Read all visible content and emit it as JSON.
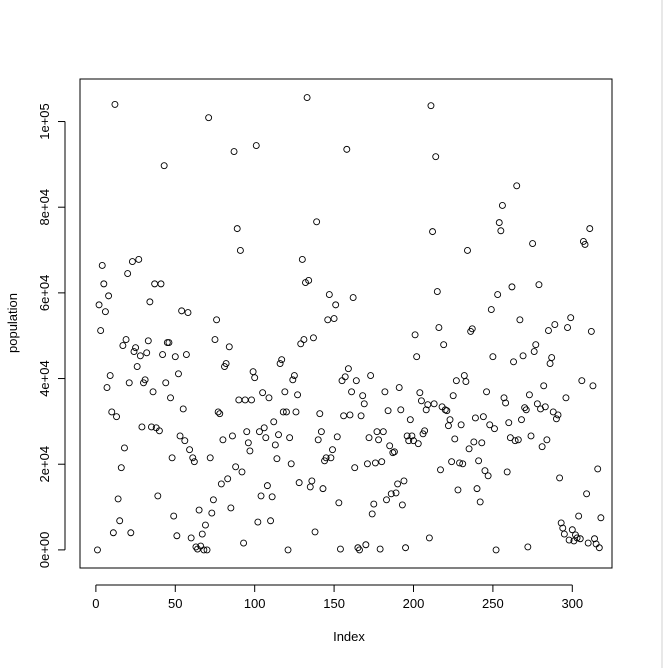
{
  "chart_data": {
    "type": "scatter",
    "x_label": "Index",
    "y_label": "population",
    "xlim": [
      -10,
      325
    ],
    "ylim": [
      -4228,
      109928
    ],
    "xticks": [
      0,
      50,
      100,
      150,
      200,
      250,
      300
    ],
    "yticks": [
      {
        "value": 0,
        "label": "0e+00"
      },
      {
        "value": 20000,
        "label": "2e+04"
      },
      {
        "value": 40000,
        "label": "4e+04"
      },
      {
        "value": 60000,
        "label": "6e+04"
      },
      {
        "value": 80000,
        "label": "8e+04"
      },
      {
        "value": 100000,
        "label": "1e+05"
      }
    ],
    "color": "#000000",
    "x": [
      1,
      2,
      3,
      4,
      5,
      6,
      7,
      8,
      9,
      10,
      11,
      12,
      13,
      14,
      15,
      16,
      17,
      18,
      19,
      20,
      21,
      22,
      23,
      24,
      25,
      26,
      27,
      28,
      29,
      30,
      31,
      32,
      33,
      34,
      35,
      36,
      37,
      38,
      39,
      40,
      41,
      42,
      43,
      44,
      45,
      46,
      47,
      48,
      49,
      50,
      51,
      52,
      53,
      54,
      55,
      56,
      57,
      58,
      59,
      60,
      61,
      62,
      63,
      64,
      65,
      66,
      67,
      68,
      69,
      70,
      71,
      72,
      73,
      74,
      75,
      76,
      77,
      78,
      79,
      80,
      81,
      82,
      83,
      84,
      85,
      86,
      87,
      88,
      89,
      90,
      91,
      92,
      93,
      94,
      95,
      96,
      97,
      98,
      99,
      100,
      101,
      102,
      103,
      104,
      105,
      106,
      107,
      108,
      109,
      110,
      111,
      112,
      113,
      114,
      115,
      116,
      117,
      118,
      119,
      120,
      121,
      122,
      123,
      124,
      125,
      126,
      127,
      128,
      129,
      130,
      131,
      132,
      133,
      134,
      135,
      136,
      137,
      138,
      139,
      140,
      141,
      142,
      143,
      144,
      145,
      146,
      147,
      148,
      149,
      150,
      151,
      152,
      153,
      154,
      155,
      156,
      157,
      158,
      159,
      160,
      161,
      162,
      163,
      164,
      165,
      166,
      167,
      168,
      169,
      170,
      171,
      172,
      173,
      174,
      175,
      176,
      177,
      178,
      179,
      180,
      181,
      182,
      183,
      184,
      185,
      186,
      187,
      188,
      189,
      190,
      191,
      192,
      193,
      194,
      195,
      196,
      197,
      198,
      199,
      200,
      201,
      202,
      203,
      204,
      205,
      206,
      207,
      208,
      209,
      210,
      211,
      212,
      213,
      214,
      215,
      216,
      217,
      218,
      219,
      220,
      221,
      222,
      223,
      224,
      225,
      226,
      227,
      228,
      229,
      230,
      231,
      232,
      233,
      234,
      235,
      236,
      237,
      238,
      239,
      240,
      241,
      242,
      243,
      244,
      245,
      246,
      247,
      248,
      249,
      250,
      251,
      252,
      253,
      254,
      255,
      256,
      257,
      258,
      259,
      260,
      261,
      262,
      263,
      264,
      265,
      266,
      267,
      268,
      269,
      270,
      271,
      272,
      273,
      274,
      275,
      276,
      277,
      278,
      279,
      280,
      281,
      282,
      283,
      284,
      285,
      286,
      287,
      288,
      289,
      290,
      291,
      292,
      293,
      294,
      295,
      296,
      297,
      298,
      299,
      300,
      301,
      302,
      303,
      304,
      305,
      306,
      307,
      308,
      309,
      310,
      311,
      312,
      313,
      314,
      315,
      316,
      317,
      318
    ],
    "values": [
      0,
      57200,
      51200,
      66400,
      62100,
      55600,
      37900,
      59300,
      40700,
      32200,
      4000,
      104000,
      31100,
      11900,
      6800,
      19200,
      47700,
      23800,
      49100,
      64500,
      39000,
      4000,
      67300,
      46300,
      47200,
      42800,
      67800,
      45300,
      28700,
      39000,
      39700,
      46000,
      48800,
      57900,
      28700,
      36900,
      62100,
      28500,
      12600,
      27800,
      62100,
      45600,
      89700,
      39000,
      48400,
      48400,
      35500,
      21500,
      7900,
      45100,
      3300,
      41100,
      26600,
      55800,
      32900,
      25500,
      45600,
      55400,
      23400,
      2800,
      21500,
      20600,
      700,
      200,
      9300,
      900,
      3700,
      0,
      5800,
      0,
      100900,
      21500,
      8600,
      11700,
      49100,
      53700,
      32200,
      31800,
      15400,
      25700,
      42800,
      43500,
      16600,
      47400,
      9800,
      26600,
      93000,
      19400,
      75000,
      35000,
      69900,
      18200,
      1600,
      35000,
      27600,
      25000,
      23100,
      35000,
      41600,
      40200,
      94400,
      6500,
      27600,
      12600,
      36700,
      28500,
      26200,
      15000,
      35500,
      6800,
      12400,
      29900,
      24500,
      21300,
      26900,
      43500,
      44400,
      32200,
      36900,
      32200,
      0,
      26200,
      20100,
      39700,
      40700,
      32200,
      36200,
      15700,
      48100,
      67800,
      49100,
      62400,
      105600,
      62900,
      14700,
      16100,
      49500,
      4200,
      76600,
      25700,
      31800,
      27600,
      14300,
      20800,
      21500,
      53700,
      59600,
      21500,
      23400,
      54000,
      57200,
      26400,
      11000,
      200,
      39500,
      31300,
      40400,
      93500,
      42300,
      31500,
      36900,
      58900,
      19200,
      39500,
      500,
      0,
      31300,
      36000,
      34100,
      1200,
      20100,
      26200,
      40700,
      8400,
      10700,
      20300,
      27600,
      25700,
      200,
      20600,
      27600,
      36900,
      11700,
      32500,
      24300,
      13100,
      22700,
      22900,
      13300,
      15400,
      37900,
      32700,
      10500,
      16100,
      500,
      26600,
      25500,
      30400,
      26600,
      25500,
      50200,
      45100,
      24800,
      36700,
      34800,
      27100,
      27800,
      32700,
      33900,
      2800,
      103700,
      74300,
      34100,
      91800,
      60300,
      51900,
      18700,
      33400,
      47900,
      32700,
      32500,
      29000,
      30400,
      20600,
      36000,
      25900,
      39500,
      14000,
      20300,
      29200,
      20100,
      40700,
      39300,
      69900,
      23600,
      51000,
      51600,
      25200,
      30800,
      14300,
      20800,
      11200,
      25000,
      31100,
      18500,
      36900,
      17300,
      29200,
      56100,
      45100,
      28300,
      0,
      59600,
      76400,
      74500,
      80400,
      35500,
      34300,
      18200,
      29700,
      26200,
      61400,
      43900,
      25500,
      85000,
      25700,
      53700,
      30400,
      45300,
      33200,
      32700,
      700,
      36200,
      26600,
      71500,
      46300,
      47900,
      34100,
      61900,
      32900,
      24100,
      38300,
      33400,
      25700,
      51200,
      43500,
      44900,
      32200,
      52600,
      30600,
      31500,
      16800,
      6300,
      5100,
      3700,
      35500,
      51900,
      2300,
      54200,
      4700,
      2100,
      3500,
      2800,
      7900,
      2600,
      39500,
      72000,
      71300,
      13100,
      1600,
      75000,
      51000,
      38300,
      2600,
      1400,
      18900,
      500,
      7500
    ]
  }
}
